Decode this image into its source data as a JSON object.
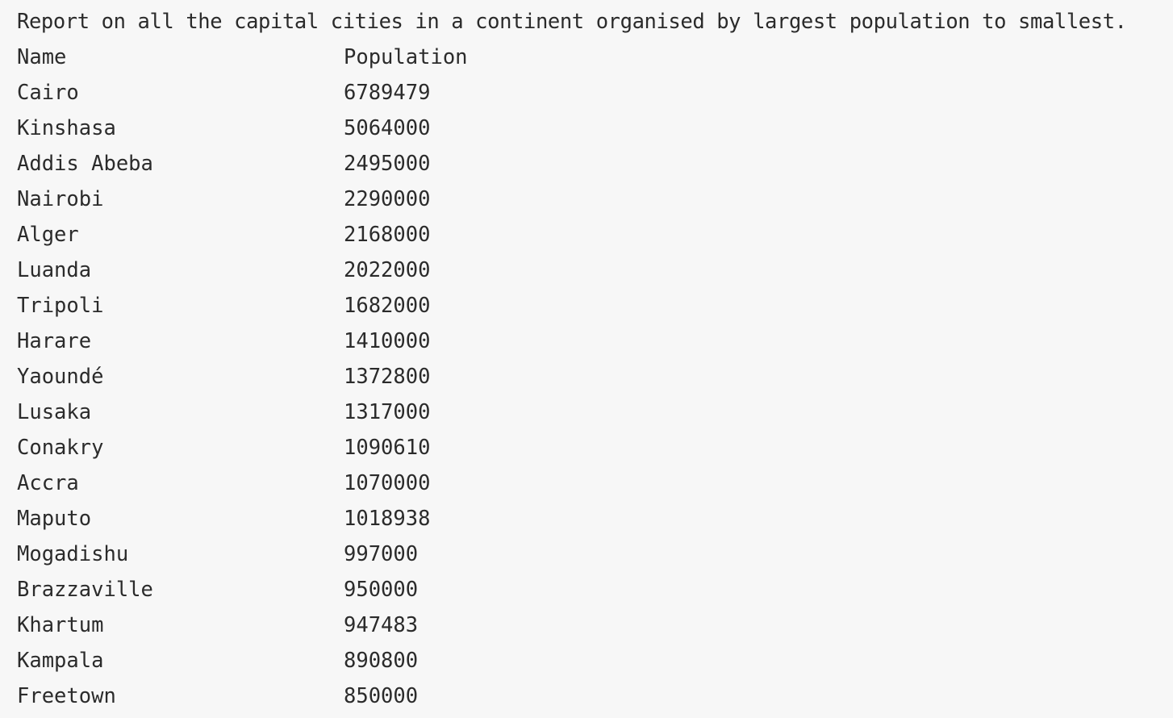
{
  "report": {
    "title": "Report on all the capital cities in a continent organised by largest population to smallest.",
    "columns": {
      "name": "Name",
      "population": "Population"
    },
    "rows": [
      {
        "name": "Cairo",
        "population": "6789479"
      },
      {
        "name": "Kinshasa",
        "population": "5064000"
      },
      {
        "name": "Addis Abeba",
        "population": "2495000"
      },
      {
        "name": "Nairobi",
        "population": "2290000"
      },
      {
        "name": "Alger",
        "population": "2168000"
      },
      {
        "name": "Luanda",
        "population": "2022000"
      },
      {
        "name": "Tripoli",
        "population": "1682000"
      },
      {
        "name": "Harare",
        "population": "1410000"
      },
      {
        "name": "Yaoundé",
        "population": "1372800"
      },
      {
        "name": "Lusaka",
        "population": "1317000"
      },
      {
        "name": "Conakry",
        "population": "1090610"
      },
      {
        "name": "Accra",
        "population": "1070000"
      },
      {
        "name": "Maputo",
        "population": "1018938"
      },
      {
        "name": "Mogadishu",
        "population": "997000"
      },
      {
        "name": "Brazzaville",
        "population": "950000"
      },
      {
        "name": "Khartum",
        "population": "947483"
      },
      {
        "name": "Kampala",
        "population": "890800"
      },
      {
        "name": "Freetown",
        "population": "850000"
      }
    ]
  }
}
